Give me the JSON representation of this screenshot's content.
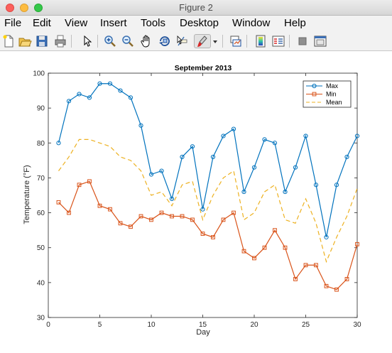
{
  "window": {
    "title": "Figure 2"
  },
  "menu": [
    "File",
    "Edit",
    "View",
    "Insert",
    "Tools",
    "Desktop",
    "Window",
    "Help"
  ],
  "toolbar_icons": [
    "new-figure-icon",
    "open-file-icon",
    "save-icon",
    "print-icon",
    "arrow-pointer-icon",
    "zoom-in-icon",
    "zoom-out-icon",
    "pan-hand-icon",
    "rotate-3d-icon",
    "data-cursor-icon",
    "brush-icon",
    "dropdown-arrow-icon",
    "link-plot-icon",
    "insert-colorbar-icon",
    "insert-legend-icon",
    "hide-plot-tools-icon",
    "show-plot-tools-icon"
  ],
  "colors": {
    "max": "#0072bd",
    "min": "#d95319",
    "mean": "#edb120"
  },
  "chart_data": {
    "type": "line",
    "title": "September 2013",
    "xlabel": "Day",
    "ylabel": "Temperature (°F)",
    "xlim": [
      0,
      30
    ],
    "ylim": [
      30,
      100
    ],
    "xticks": [
      0,
      5,
      10,
      15,
      20,
      25,
      30
    ],
    "yticks": [
      30,
      40,
      50,
      60,
      70,
      80,
      90,
      100
    ],
    "legend_position": "top-right",
    "x": [
      1,
      2,
      3,
      4,
      5,
      6,
      7,
      8,
      9,
      10,
      11,
      12,
      13,
      14,
      15,
      16,
      17,
      18,
      19,
      20,
      21,
      22,
      23,
      24,
      25,
      26,
      27,
      28,
      29,
      30
    ],
    "series": [
      {
        "name": "Max",
        "marker": "circle",
        "style": "solid",
        "values": [
          80,
          92,
          94,
          93,
          97,
          97,
          95,
          93,
          85,
          71,
          72,
          64,
          76,
          79,
          61,
          76,
          82,
          84,
          66,
          73,
          81,
          80,
          66,
          73,
          82,
          68,
          53,
          68,
          76,
          82
        ]
      },
      {
        "name": "Min",
        "marker": "square",
        "style": "solid",
        "values": [
          63,
          60,
          68,
          69,
          62,
          61,
          57,
          56,
          59,
          58,
          60,
          59,
          59,
          58,
          54,
          53,
          58,
          60,
          49,
          47,
          50,
          55,
          50,
          41,
          45,
          45,
          39,
          38,
          41,
          51
        ]
      },
      {
        "name": "Mean",
        "marker": "none",
        "style": "dashed",
        "values": [
          72,
          76,
          81,
          81,
          80,
          79,
          76,
          75,
          72,
          65,
          66,
          62,
          68,
          69,
          58,
          65,
          70,
          72,
          58,
          60,
          66,
          68,
          58,
          57,
          64,
          57,
          46,
          53,
          59,
          67
        ]
      }
    ]
  }
}
